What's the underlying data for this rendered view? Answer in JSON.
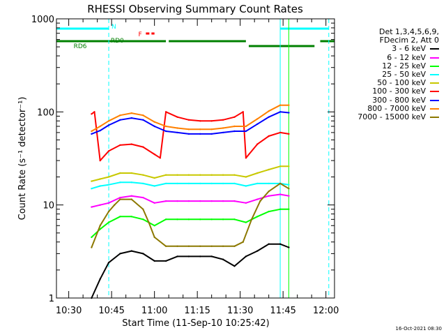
{
  "chart_data": {
    "type": "line",
    "title": "RHESSI Observing Summary Count Rates",
    "xlabel": "Start Time (11-Sep-10 10:25:42)",
    "ylabel": "Count Rate (s⁻¹ detector⁻¹)",
    "yscale": "log",
    "ylim": [
      1,
      1000
    ],
    "xlim": [
      "10:25:42",
      "12:03:00"
    ],
    "x_ticks": [
      "10:30",
      "10:45",
      "11:00",
      "11:15",
      "11:30",
      "11:45",
      "12:00"
    ],
    "y_ticks": [
      "1",
      "10",
      "100",
      "1000"
    ],
    "grid": false,
    "legend_position": "right",
    "legend_header": [
      "Det 1,3,4,5,6,9,",
      "FDecim 2, Att 0"
    ],
    "series": [
      {
        "name": "3 - 6 keV",
        "color": "#000000",
        "x": [
          "10:38",
          "10:41",
          "10:44",
          "10:48",
          "10:52",
          "10:56",
          "11:00",
          "11:04",
          "11:08",
          "11:12",
          "11:16",
          "11:20",
          "11:24",
          "11:28",
          "11:32",
          "11:36",
          "11:40",
          "11:44",
          "11:47"
        ],
        "y": [
          1.0,
          1.6,
          2.4,
          3.0,
          3.2,
          3.0,
          2.5,
          2.5,
          2.8,
          2.8,
          2.8,
          2.8,
          2.6,
          2.2,
          2.8,
          3.2,
          3.8,
          3.8,
          3.5
        ]
      },
      {
        "name": "6 - 12 keV",
        "color": "#ff00ff",
        "x": [
          "10:38",
          "10:41",
          "10:44",
          "10:48",
          "10:52",
          "10:56",
          "11:00",
          "11:04",
          "11:08",
          "11:12",
          "11:16",
          "11:20",
          "11:24",
          "11:28",
          "11:32",
          "11:36",
          "11:40",
          "11:44",
          "11:47"
        ],
        "y": [
          9.5,
          10.0,
          10.5,
          12.0,
          12.5,
          12.0,
          10.5,
          11.0,
          11.0,
          11.0,
          11.0,
          11.0,
          11.0,
          11.0,
          10.5,
          11.5,
          12.5,
          13.0,
          12.5
        ]
      },
      {
        "name": "12 - 25 keV",
        "color": "#00ff00",
        "x": [
          "10:38",
          "10:41",
          "10:44",
          "10:48",
          "10:52",
          "10:56",
          "11:00",
          "11:04",
          "11:08",
          "11:12",
          "11:16",
          "11:20",
          "11:24",
          "11:28",
          "11:32",
          "11:36",
          "11:40",
          "11:44",
          "11:47"
        ],
        "y": [
          4.5,
          5.5,
          6.5,
          7.5,
          7.5,
          7.0,
          6.0,
          7.0,
          7.0,
          7.0,
          7.0,
          7.0,
          7.0,
          7.0,
          6.5,
          7.5,
          8.5,
          9.0,
          9.0
        ]
      },
      {
        "name": "25 - 50 keV",
        "color": "#00ffff",
        "x": [
          "10:38",
          "10:41",
          "10:44",
          "10:48",
          "10:52",
          "10:56",
          "11:00",
          "11:04",
          "11:08",
          "11:12",
          "11:16",
          "11:20",
          "11:24",
          "11:28",
          "11:32",
          "11:36",
          "11:40",
          "11:44",
          "11:47"
        ],
        "y": [
          15.0,
          16.0,
          16.5,
          17.5,
          17.5,
          17.0,
          16.0,
          17.0,
          17.0,
          17.0,
          17.0,
          17.0,
          17.0,
          17.0,
          16.0,
          17.0,
          17.0,
          17.0,
          16.5
        ]
      },
      {
        "name": "50 - 100 keV",
        "color": "#c8c800",
        "x": [
          "10:38",
          "10:41",
          "10:44",
          "10:48",
          "10:52",
          "10:56",
          "11:00",
          "11:04",
          "11:08",
          "11:12",
          "11:16",
          "11:20",
          "11:24",
          "11:28",
          "11:32",
          "11:36",
          "11:40",
          "11:44",
          "11:47"
        ],
        "y": [
          18.0,
          19.0,
          20.0,
          22.0,
          22.0,
          21.0,
          19.5,
          21.0,
          21.0,
          21.0,
          21.0,
          21.0,
          21.0,
          21.0,
          20.0,
          22.0,
          24.0,
          26.0,
          26.0
        ]
      },
      {
        "name": "100 - 300 keV",
        "color": "#ff0000",
        "x": [
          "10:38",
          "10:39",
          "10:41",
          "10:44",
          "10:48",
          "10:52",
          "10:56",
          "11:00",
          "11:02",
          "11:04",
          "11:08",
          "11:12",
          "11:16",
          "11:20",
          "11:24",
          "11:28",
          "11:31",
          "11:32",
          "11:36",
          "11:40",
          "11:44",
          "11:47"
        ],
        "y": [
          95.0,
          100.0,
          30.0,
          38.0,
          44.0,
          45.0,
          42.0,
          35.0,
          32.0,
          100.0,
          88.0,
          82.0,
          80.0,
          80.0,
          82.0,
          88.0,
          100.0,
          32.0,
          45.0,
          55.0,
          60.0,
          58.0
        ]
      },
      {
        "name": "300 - 800 keV",
        "color": "#0000ff",
        "x": [
          "10:38",
          "10:41",
          "10:44",
          "10:48",
          "10:52",
          "10:56",
          "11:00",
          "11:04",
          "11:08",
          "11:12",
          "11:16",
          "11:20",
          "11:24",
          "11:28",
          "11:32",
          "11:36",
          "11:40",
          "11:44",
          "11:47"
        ],
        "y": [
          58.0,
          63.0,
          72.0,
          82.0,
          86.0,
          82.0,
          70.0,
          62.0,
          60.0,
          58.0,
          58.0,
          58.0,
          60.0,
          62.0,
          62.0,
          74.0,
          88.0,
          100.0,
          98.0
        ]
      },
      {
        "name": "800 - 7000 keV",
        "color": "#ff8000",
        "x": [
          "10:38",
          "10:41",
          "10:44",
          "10:48",
          "10:52",
          "10:56",
          "11:00",
          "11:04",
          "11:08",
          "11:12",
          "11:16",
          "11:20",
          "11:24",
          "11:28",
          "11:32",
          "11:36",
          "11:40",
          "11:44",
          "11:47"
        ],
        "y": [
          62.0,
          70.0,
          80.0,
          92.0,
          97.0,
          92.0,
          78.0,
          70.0,
          67.0,
          65.0,
          65.0,
          65.0,
          67.0,
          70.0,
          70.0,
          84.0,
          102.0,
          118.0,
          118.0
        ]
      },
      {
        "name": "7000 - 15000 keV",
        "color": "#8c7800",
        "x": [
          "10:38",
          "10:41",
          "10:44",
          "10:46",
          "10:48",
          "10:52",
          "10:56",
          "10:58",
          "11:00",
          "11:04",
          "11:08",
          "11:12",
          "11:16",
          "11:20",
          "11:24",
          "11:28",
          "11:31",
          "11:34",
          "11:37",
          "11:40",
          "11:44",
          "11:47"
        ],
        "y": [
          3.5,
          6.0,
          8.5,
          10.0,
          11.5,
          11.5,
          9.0,
          6.5,
          4.5,
          3.6,
          3.6,
          3.6,
          3.6,
          3.6,
          3.6,
          3.6,
          4.0,
          7.0,
          11.0,
          14.0,
          17.0,
          15.0
        ]
      }
    ],
    "annotations": [
      {
        "text": "N",
        "color": "#00ffff"
      },
      {
        "text": "RD6",
        "color": "#008000"
      },
      {
        "text": "RD0",
        "color": "#008000"
      },
      {
        "text": "F",
        "color": "#ff0000"
      }
    ],
    "footer_stamp": "16-Oct-2021 08:30"
  }
}
